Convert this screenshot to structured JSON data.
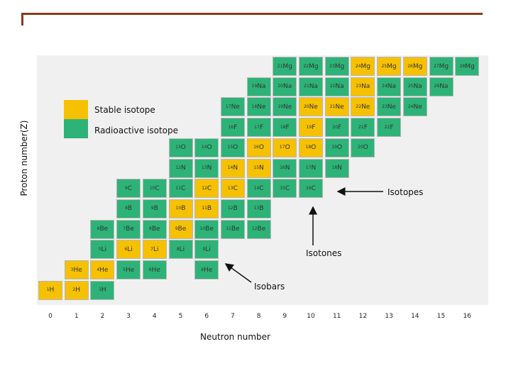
{
  "legend": {
    "stable": {
      "label": "Stable isotope",
      "color": "#f6c100"
    },
    "radioactive": {
      "label": "Radioactive isotope",
      "color": "#2db377"
    }
  },
  "axes": {
    "xlabel": "Neutron number",
    "ylabel": "Proton number(Z)",
    "xticks": [
      "0",
      "1",
      "2",
      "3",
      "4",
      "5",
      "6",
      "7",
      "8",
      "9",
      "10",
      "11",
      "12",
      "13",
      "14",
      "15",
      "16"
    ]
  },
  "annotations": {
    "isotopes": "Isotopes",
    "isotones": "Isotones",
    "isobars": "Isobars"
  },
  "nuclides": [
    {
      "mass": "1",
      "symbol": "H",
      "Z": 1,
      "N": 0,
      "stable": true
    },
    {
      "mass": "2",
      "symbol": "H",
      "Z": 1,
      "N": 1,
      "stable": true
    },
    {
      "mass": "3",
      "symbol": "H",
      "Z": 1,
      "N": 2,
      "stable": false
    },
    {
      "mass": "3",
      "symbol": "He",
      "Z": 2,
      "N": 1,
      "stable": true
    },
    {
      "mass": "4",
      "symbol": "He",
      "Z": 2,
      "N": 2,
      "stable": true
    },
    {
      "mass": "5",
      "symbol": "He",
      "Z": 2,
      "N": 3,
      "stable": false
    },
    {
      "mass": "6",
      "symbol": "He",
      "Z": 2,
      "N": 4,
      "stable": false
    },
    {
      "mass": "8",
      "symbol": "He",
      "Z": 2,
      "N": 6,
      "stable": false
    },
    {
      "mass": "5",
      "symbol": "Li",
      "Z": 3,
      "N": 2,
      "stable": false
    },
    {
      "mass": "6",
      "symbol": "Li",
      "Z": 3,
      "N": 3,
      "stable": true
    },
    {
      "mass": "7",
      "symbol": "Li",
      "Z": 3,
      "N": 4,
      "stable": true
    },
    {
      "mass": "8",
      "symbol": "Li",
      "Z": 3,
      "N": 5,
      "stable": false
    },
    {
      "mass": "9",
      "symbol": "Li",
      "Z": 3,
      "N": 6,
      "stable": false
    },
    {
      "mass": "6",
      "symbol": "Be",
      "Z": 4,
      "N": 2,
      "stable": false
    },
    {
      "mass": "7",
      "symbol": "Be",
      "Z": 4,
      "N": 3,
      "stable": false
    },
    {
      "mass": "8",
      "symbol": "Be",
      "Z": 4,
      "N": 4,
      "stable": false
    },
    {
      "mass": "9",
      "symbol": "Be",
      "Z": 4,
      "N": 5,
      "stable": true
    },
    {
      "mass": "10",
      "symbol": "Be",
      "Z": 4,
      "N": 6,
      "stable": false
    },
    {
      "mass": "11",
      "symbol": "Be",
      "Z": 4,
      "N": 7,
      "stable": false
    },
    {
      "mass": "12",
      "symbol": "Be",
      "Z": 4,
      "N": 8,
      "stable": false
    },
    {
      "mass": "8",
      "symbol": "B",
      "Z": 5,
      "N": 3,
      "stable": false
    },
    {
      "mass": "9",
      "symbol": "B",
      "Z": 5,
      "N": 4,
      "stable": false
    },
    {
      "mass": "10",
      "symbol": "B",
      "Z": 5,
      "N": 5,
      "stable": true
    },
    {
      "mass": "11",
      "symbol": "B",
      "Z": 5,
      "N": 6,
      "stable": true
    },
    {
      "mass": "12",
      "symbol": "B",
      "Z": 5,
      "N": 7,
      "stable": false
    },
    {
      "mass": "13",
      "symbol": "B",
      "Z": 5,
      "N": 8,
      "stable": false
    },
    {
      "mass": "9",
      "symbol": "C",
      "Z": 6,
      "N": 3,
      "stable": false
    },
    {
      "mass": "10",
      "symbol": "C",
      "Z": 6,
      "N": 4,
      "stable": false
    },
    {
      "mass": "11",
      "symbol": "C",
      "Z": 6,
      "N": 5,
      "stable": false
    },
    {
      "mass": "12",
      "symbol": "C",
      "Z": 6,
      "N": 6,
      "stable": true
    },
    {
      "mass": "13",
      "symbol": "C",
      "Z": 6,
      "N": 7,
      "stable": true
    },
    {
      "mass": "14",
      "symbol": "C",
      "Z": 6,
      "N": 8,
      "stable": false
    },
    {
      "mass": "15",
      "symbol": "C",
      "Z": 6,
      "N": 9,
      "stable": false
    },
    {
      "mass": "16",
      "symbol": "C",
      "Z": 6,
      "N": 10,
      "stable": false
    },
    {
      "mass": "12",
      "symbol": "N",
      "Z": 7,
      "N": 5,
      "stable": false
    },
    {
      "mass": "13",
      "symbol": "N",
      "Z": 7,
      "N": 6,
      "stable": false
    },
    {
      "mass": "14",
      "symbol": "N",
      "Z": 7,
      "N": 7,
      "stable": true
    },
    {
      "mass": "15",
      "symbol": "N",
      "Z": 7,
      "N": 8,
      "stable": true
    },
    {
      "mass": "16",
      "symbol": "N",
      "Z": 7,
      "N": 9,
      "stable": false
    },
    {
      "mass": "17",
      "symbol": "N",
      "Z": 7,
      "N": 10,
      "stable": false
    },
    {
      "mass": "18",
      "symbol": "N",
      "Z": 7,
      "N": 11,
      "stable": false
    },
    {
      "mass": "13",
      "symbol": "O",
      "Z": 8,
      "N": 5,
      "stable": false
    },
    {
      "mass": "14",
      "symbol": "O",
      "Z": 8,
      "N": 6,
      "stable": false
    },
    {
      "mass": "15",
      "symbol": "O",
      "Z": 8,
      "N": 7,
      "stable": false
    },
    {
      "mass": "16",
      "symbol": "O",
      "Z": 8,
      "N": 8,
      "stable": true
    },
    {
      "mass": "17",
      "symbol": "O",
      "Z": 8,
      "N": 9,
      "stable": true
    },
    {
      "mass": "18",
      "symbol": "O",
      "Z": 8,
      "N": 10,
      "stable": true
    },
    {
      "mass": "19",
      "symbol": "O",
      "Z": 8,
      "N": 11,
      "stable": false
    },
    {
      "mass": "20",
      "symbol": "O",
      "Z": 8,
      "N": 12,
      "stable": false
    },
    {
      "mass": "16",
      "symbol": "F",
      "Z": 9,
      "N": 7,
      "stable": false
    },
    {
      "mass": "17",
      "symbol": "F",
      "Z": 9,
      "N": 8,
      "stable": false
    },
    {
      "mass": "18",
      "symbol": "F",
      "Z": 9,
      "N": 9,
      "stable": false
    },
    {
      "mass": "19",
      "symbol": "F",
      "Z": 9,
      "N": 10,
      "stable": true
    },
    {
      "mass": "20",
      "symbol": "F",
      "Z": 9,
      "N": 11,
      "stable": false
    },
    {
      "mass": "21",
      "symbol": "F",
      "Z": 9,
      "N": 12,
      "stable": false
    },
    {
      "mass": "22",
      "symbol": "F",
      "Z": 9,
      "N": 13,
      "stable": false
    },
    {
      "mass": "17",
      "symbol": "Ne",
      "Z": 10,
      "N": 7,
      "stable": false
    },
    {
      "mass": "18",
      "symbol": "Ne",
      "Z": 10,
      "N": 8,
      "stable": false
    },
    {
      "mass": "19",
      "symbol": "Ne",
      "Z": 10,
      "N": 9,
      "stable": false
    },
    {
      "mass": "20",
      "symbol": "Ne",
      "Z": 10,
      "N": 10,
      "stable": true
    },
    {
      "mass": "21",
      "symbol": "Ne",
      "Z": 10,
      "N": 11,
      "stable": true
    },
    {
      "mass": "22",
      "symbol": "Ne",
      "Z": 10,
      "N": 12,
      "stable": true
    },
    {
      "mass": "23",
      "symbol": "Ne",
      "Z": 10,
      "N": 13,
      "stable": false
    },
    {
      "mass": "24",
      "symbol": "Ne",
      "Z": 10,
      "N": 14,
      "stable": false
    },
    {
      "mass": "19",
      "symbol": "Na",
      "Z": 11,
      "N": 8,
      "stable": false
    },
    {
      "mass": "20",
      "symbol": "Na",
      "Z": 11,
      "N": 9,
      "stable": false
    },
    {
      "mass": "21",
      "symbol": "Na",
      "Z": 11,
      "N": 10,
      "stable": false
    },
    {
      "mass": "22",
      "symbol": "Na",
      "Z": 11,
      "N": 11,
      "stable": false
    },
    {
      "mass": "23",
      "symbol": "Na",
      "Z": 11,
      "N": 12,
      "stable": true
    },
    {
      "mass": "24",
      "symbol": "Na",
      "Z": 11,
      "N": 13,
      "stable": false
    },
    {
      "mass": "25",
      "symbol": "Na",
      "Z": 11,
      "N": 14,
      "stable": false
    },
    {
      "mass": "26",
      "symbol": "Na",
      "Z": 11,
      "N": 15,
      "stable": false
    },
    {
      "mass": "21",
      "symbol": "Mg",
      "Z": 12,
      "N": 9,
      "stable": false
    },
    {
      "mass": "22",
      "symbol": "Mg",
      "Z": 12,
      "N": 10,
      "stable": false
    },
    {
      "mass": "23",
      "symbol": "Mg",
      "Z": 12,
      "N": 11,
      "stable": false
    },
    {
      "mass": "24",
      "symbol": "Mg",
      "Z": 12,
      "N": 12,
      "stable": true
    },
    {
      "mass": "25",
      "symbol": "Mg",
      "Z": 12,
      "N": 13,
      "stable": true
    },
    {
      "mass": "26",
      "symbol": "Mg",
      "Z": 12,
      "N": 14,
      "stable": true
    },
    {
      "mass": "27",
      "symbol": "Mg",
      "Z": 12,
      "N": 15,
      "stable": false
    },
    {
      "mass": "28",
      "symbol": "Mg",
      "Z": 12,
      "N": 16,
      "stable": false
    }
  ]
}
